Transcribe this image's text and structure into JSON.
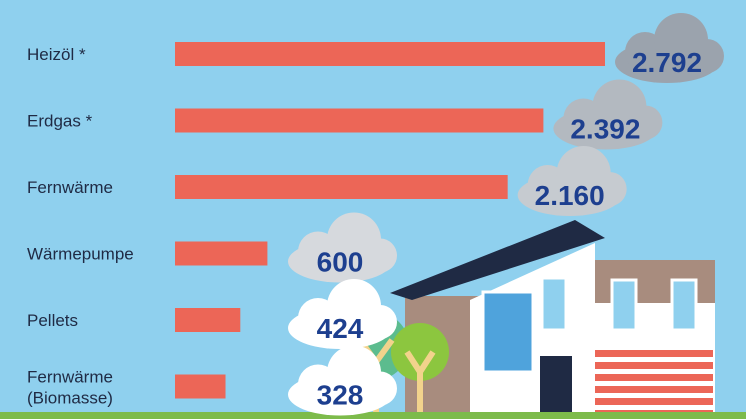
{
  "chart_data": {
    "type": "bar",
    "orientation": "horizontal",
    "categories": [
      "Heizöl *",
      "Erdgas *",
      "Fernwärme",
      "Wärmepumpe",
      "Pellets",
      "Fernwärme (Biomasse)"
    ],
    "category_lines": [
      [
        "Heizöl *"
      ],
      [
        "Erdgas *"
      ],
      [
        "Fernwärme"
      ],
      [
        "Wärmepumpe"
      ],
      [
        "Pellets"
      ],
      [
        "Fernwärme",
        "(Biomasse)"
      ]
    ],
    "values": [
      2792,
      2392,
      2160,
      600,
      424,
      328
    ],
    "value_labels": [
      "2.792",
      "2.392",
      "2.160",
      "600",
      "424",
      "328"
    ],
    "cloud_colors": [
      "#9ba3ad",
      "#b3b9c0",
      "#c6cbd0",
      "#d6d9dd",
      "#ffffff",
      "#ffffff"
    ],
    "bar_color": "#ec6657",
    "title": "",
    "xlabel": "",
    "ylabel": "",
    "grid": false,
    "legend": "none"
  },
  "colors": {
    "background": "#8fd0ee",
    "value_text": "#1d3f8f",
    "label_text": "#1f2a44",
    "grass": "#7dbb4b"
  }
}
